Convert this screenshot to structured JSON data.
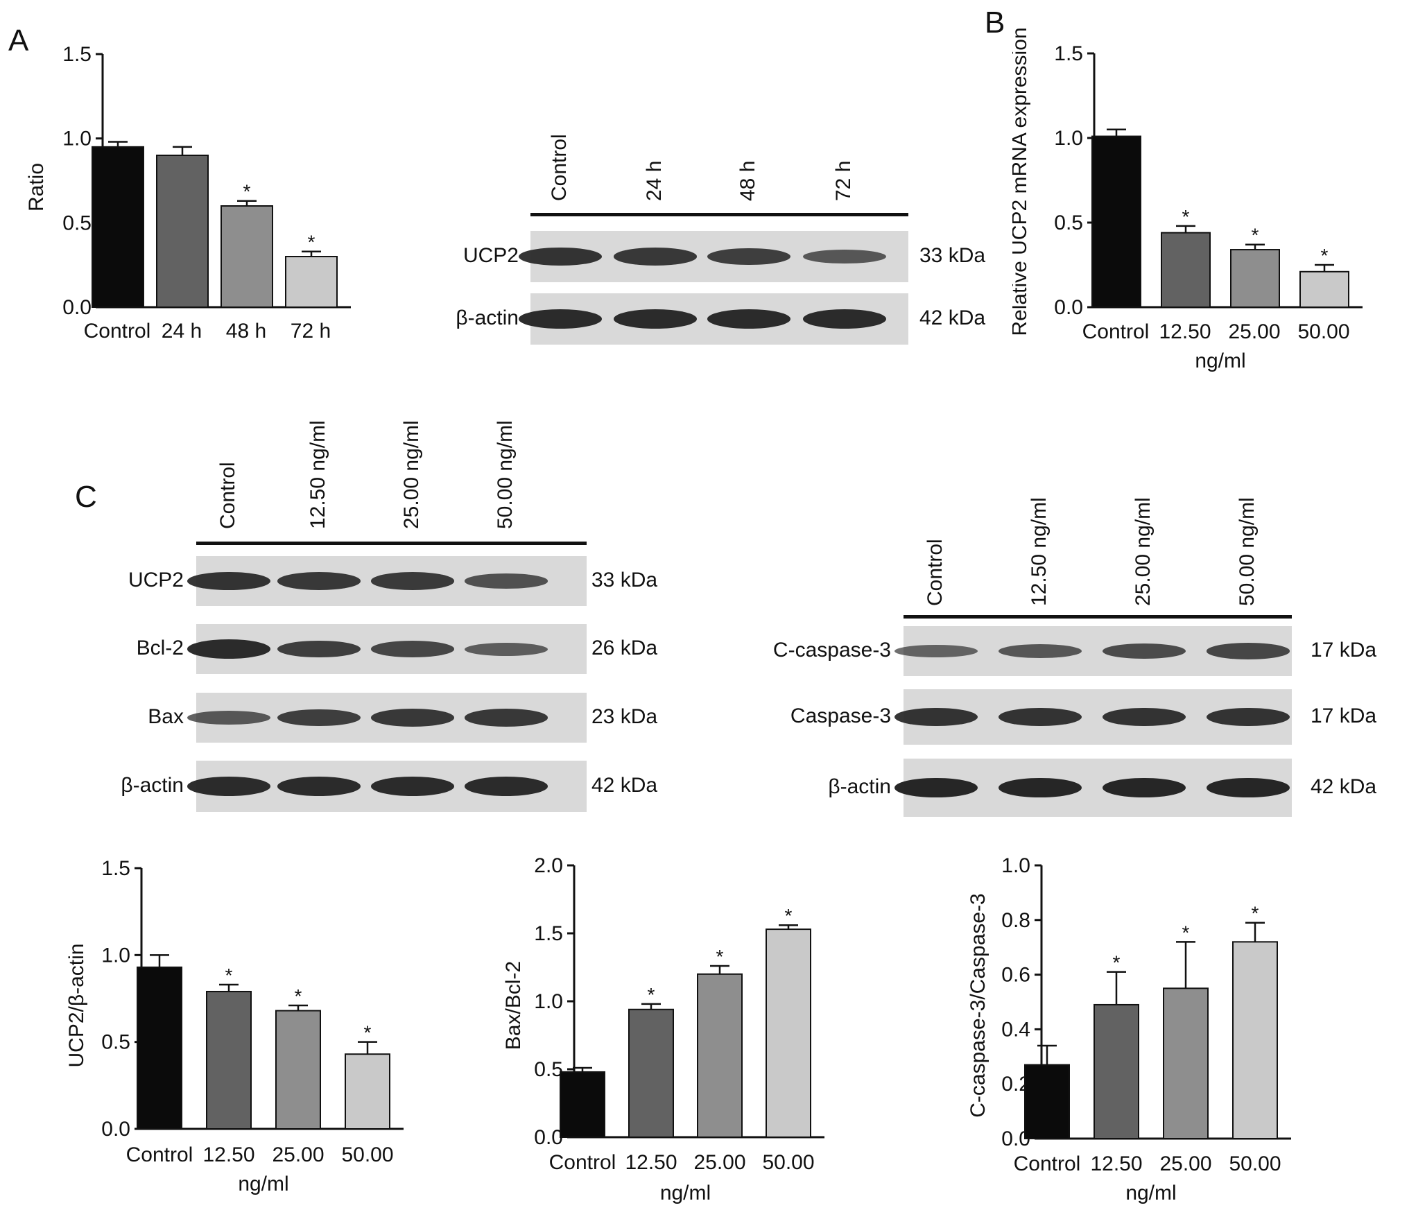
{
  "panels": {
    "A": "A",
    "B": "B",
    "C": "C"
  },
  "colors": {
    "bar1": "#0b0b0b",
    "bar2": "#626262",
    "bar3": "#8e8e8e",
    "bar4": "#c9c9c9",
    "strip": "#d9d9d9",
    "band": "#202020"
  },
  "chart_data": [
    {
      "id": "chartA",
      "type": "bar",
      "categories": [
        "Control",
        "24 h",
        "48 h",
        "72 h"
      ],
      "values": [
        0.95,
        0.9,
        0.6,
        0.3
      ],
      "errors": [
        0.03,
        0.05,
        0.03,
        0.03
      ],
      "significant": [
        false,
        false,
        true,
        true
      ],
      "ylabel": "Ratio",
      "xlabel": "",
      "ylim": [
        0,
        1.5
      ],
      "yticks": [
        "0.0",
        "0.5",
        "1.0",
        "1.5"
      ],
      "grid": false
    },
    {
      "id": "chartB",
      "type": "bar",
      "categories": [
        "Control",
        "12.50",
        "25.00",
        "50.00"
      ],
      "values": [
        1.01,
        0.44,
        0.34,
        0.21
      ],
      "errors": [
        0.04,
        0.04,
        0.03,
        0.04
      ],
      "significant": [
        false,
        true,
        true,
        true
      ],
      "ylabel": "Relative UCP2 mRNA expression",
      "xlabel": "ng/ml",
      "ylim": [
        0,
        1.5
      ],
      "yticks": [
        "0.0",
        "0.5",
        "1.0",
        "1.5"
      ],
      "grid": false
    },
    {
      "id": "chartC1",
      "type": "bar",
      "categories": [
        "Control",
        "12.50",
        "25.00",
        "50.00"
      ],
      "values": [
        0.93,
        0.79,
        0.68,
        0.43
      ],
      "errors": [
        0.07,
        0.04,
        0.03,
        0.07
      ],
      "significant": [
        false,
        true,
        true,
        true
      ],
      "ylabel": "UCP2/β-actin",
      "xlabel": "ng/ml",
      "ylim": [
        0,
        1.5
      ],
      "yticks": [
        "0.0",
        "0.5",
        "1.0",
        "1.5"
      ],
      "grid": false
    },
    {
      "id": "chartC2",
      "type": "bar",
      "categories": [
        "Control",
        "12.50",
        "25.00",
        "50.00"
      ],
      "values": [
        0.48,
        0.94,
        1.2,
        1.53
      ],
      "errors": [
        0.03,
        0.04,
        0.06,
        0.03
      ],
      "significant": [
        false,
        true,
        true,
        true
      ],
      "ylabel": "Bax/Bcl-2",
      "xlabel": "ng/ml",
      "ylim": [
        0,
        2.0
      ],
      "yticks": [
        "0.0",
        "0.5",
        "1.0",
        "1.5",
        "2.0"
      ],
      "grid": false
    },
    {
      "id": "chartC3",
      "type": "bar",
      "categories": [
        "Control",
        "12.50",
        "25.00",
        "50.00"
      ],
      "values": [
        0.27,
        0.49,
        0.55,
        0.72
      ],
      "errors": [
        0.07,
        0.12,
        0.17,
        0.07
      ],
      "significant": [
        false,
        true,
        true,
        true
      ],
      "ylabel": "C-caspase-3/Caspase-3",
      "xlabel": "ng/ml",
      "ylim": [
        0,
        1.0
      ],
      "yticks": [
        "0.0",
        "0.2",
        "0.4",
        "0.6",
        "0.8",
        "1.0"
      ],
      "grid": false
    }
  ],
  "blots": {
    "blotA": {
      "lanes": [
        "Control",
        "24 h",
        "48 h",
        "72 h"
      ],
      "rows": [
        {
          "label": "UCP2",
          "kda": "33 kDa",
          "intensity": [
            0.85,
            0.8,
            0.75,
            0.55
          ]
        },
        {
          "label": "β-actin",
          "kda": "42 kDa",
          "intensity": [
            0.9,
            0.9,
            0.9,
            0.9
          ]
        }
      ]
    },
    "blotC1": {
      "lanes": [
        "Control",
        "12.50 ng/ml",
        "25.00 ng/ml",
        "50.00 ng/ml"
      ],
      "rows": [
        {
          "label": "UCP2",
          "kda": "33 kDa",
          "intensity": [
            0.85,
            0.8,
            0.78,
            0.6
          ]
        },
        {
          "label": "Bcl-2",
          "kda": "26 kDa",
          "intensity": [
            0.9,
            0.75,
            0.7,
            0.5
          ]
        },
        {
          "label": "Bax",
          "kda": "23 kDa",
          "intensity": [
            0.55,
            0.75,
            0.8,
            0.8
          ]
        },
        {
          "label": "β-actin",
          "kda": "42 kDa",
          "intensity": [
            0.9,
            0.9,
            0.9,
            0.9
          ]
        }
      ]
    },
    "blotC2": {
      "lanes": [
        "Control",
        "12.50 ng/ml",
        "25.00 ng/ml",
        "50.00 ng/ml"
      ],
      "rows": [
        {
          "label": "C-caspase-3",
          "kda": "17 kDa",
          "intensity": [
            0.45,
            0.55,
            0.65,
            0.7
          ]
        },
        {
          "label": "Caspase-3",
          "kda": "17 kDa",
          "intensity": [
            0.85,
            0.85,
            0.85,
            0.85
          ]
        },
        {
          "label": "β-actin",
          "kda": "42 kDa",
          "intensity": [
            0.95,
            0.95,
            0.95,
            0.95
          ]
        }
      ]
    }
  }
}
